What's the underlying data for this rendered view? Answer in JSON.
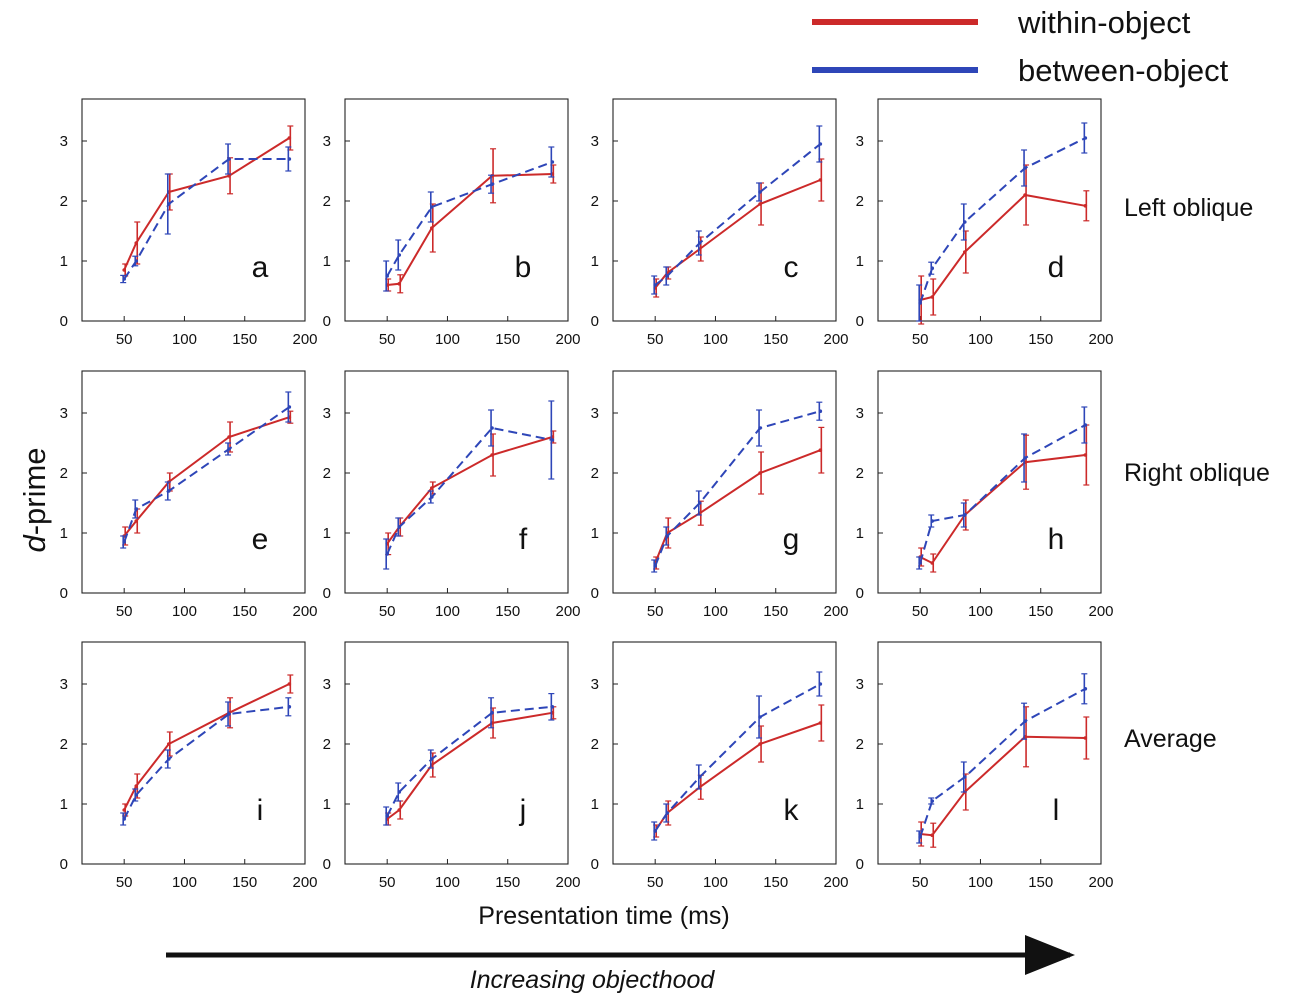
{
  "legend": {
    "within": {
      "label": "within-object",
      "color": "#cc2a2a"
    },
    "between": {
      "label": "between-object",
      "color": "#2e46b8"
    }
  },
  "xlabel": "Presentation time (ms)",
  "ylabel": {
    "italic": "d",
    "rest": "-prime"
  },
  "arrow_caption": "Increasing objecthood",
  "row_labels": [
    "Left oblique",
    "Right oblique",
    "Average"
  ],
  "x_ticks": [
    50,
    100,
    150,
    200
  ],
  "y_ticks": [
    0,
    1,
    2,
    3
  ],
  "chart_data": [
    {
      "panel": "a",
      "type": "line",
      "x": [
        50,
        60,
        87,
        137,
        187
      ],
      "xlim": [
        15,
        200
      ],
      "ylim": [
        0,
        3.7
      ],
      "series": [
        {
          "name": "within-object",
          "values": [
            0.85,
            1.3,
            2.15,
            2.42,
            3.05
          ],
          "errors": [
            0.1,
            0.35,
            0.3,
            0.3,
            0.2
          ]
        },
        {
          "name": "between-object",
          "values": [
            0.7,
            1.0,
            1.95,
            2.7,
            2.7
          ],
          "errors": [
            0.06,
            0.08,
            0.5,
            0.25,
            0.2
          ]
        }
      ]
    },
    {
      "panel": "b",
      "type": "line",
      "x": [
        50,
        60,
        87,
        137,
        187
      ],
      "xlim": [
        15,
        200
      ],
      "ylim": [
        0,
        3.7
      ],
      "series": [
        {
          "name": "within-object",
          "values": [
            0.6,
            0.62,
            1.55,
            2.42,
            2.45
          ],
          "errors": [
            0.1,
            0.15,
            0.4,
            0.45,
            0.15
          ]
        },
        {
          "name": "between-object",
          "values": [
            0.75,
            1.1,
            1.9,
            2.28,
            2.65
          ],
          "errors": [
            0.25,
            0.25,
            0.25,
            0.15,
            0.25
          ]
        }
      ]
    },
    {
      "panel": "c",
      "type": "line",
      "x": [
        50,
        60,
        87,
        137,
        187
      ],
      "xlim": [
        15,
        200
      ],
      "ylim": [
        0,
        3.7
      ],
      "series": [
        {
          "name": "within-object",
          "values": [
            0.55,
            0.8,
            1.2,
            1.95,
            2.35
          ],
          "errors": [
            0.15,
            0.1,
            0.2,
            0.35,
            0.35
          ]
        },
        {
          "name": "between-object",
          "values": [
            0.6,
            0.75,
            1.3,
            2.15,
            2.95
          ],
          "errors": [
            0.15,
            0.15,
            0.2,
            0.15,
            0.3
          ]
        }
      ]
    },
    {
      "panel": "d",
      "type": "line",
      "x": [
        50,
        60,
        87,
        137,
        187
      ],
      "xlim": [
        15,
        200
      ],
      "ylim": [
        0,
        3.7
      ],
      "series": [
        {
          "name": "within-object",
          "values": [
            0.35,
            0.4,
            1.15,
            2.1,
            1.92
          ],
          "errors": [
            0.4,
            0.3,
            0.35,
            0.5,
            0.25
          ]
        },
        {
          "name": "between-object",
          "values": [
            0.3,
            0.88,
            1.65,
            2.55,
            3.05
          ],
          "errors": [
            0.3,
            0.1,
            0.3,
            0.3,
            0.25
          ]
        }
      ]
    },
    {
      "panel": "e",
      "type": "line",
      "x": [
        50,
        60,
        87,
        137,
        187
      ],
      "xlim": [
        15,
        200
      ],
      "ylim": [
        0,
        3.7
      ],
      "series": [
        {
          "name": "within-object",
          "values": [
            0.95,
            1.2,
            1.85,
            2.6,
            2.93
          ],
          "errors": [
            0.15,
            0.2,
            0.15,
            0.25,
            0.1
          ]
        },
        {
          "name": "between-object",
          "values": [
            0.85,
            1.4,
            1.7,
            2.4,
            3.1
          ],
          "errors": [
            0.1,
            0.15,
            0.15,
            0.1,
            0.25
          ]
        }
      ]
    },
    {
      "panel": "f",
      "type": "line",
      "x": [
        50,
        60,
        87,
        137,
        187
      ],
      "xlim": [
        15,
        200
      ],
      "ylim": [
        0,
        3.7
      ],
      "series": [
        {
          "name": "within-object",
          "values": [
            0.82,
            1.1,
            1.75,
            2.3,
            2.6
          ],
          "errors": [
            0.18,
            0.15,
            0.1,
            0.35,
            0.1
          ]
        },
        {
          "name": "between-object",
          "values": [
            0.65,
            1.1,
            1.6,
            2.75,
            2.55
          ],
          "errors": [
            0.25,
            0.15,
            0.1,
            0.3,
            0.65
          ]
        }
      ]
    },
    {
      "panel": "g",
      "type": "line",
      "x": [
        50,
        60,
        87,
        137,
        187
      ],
      "xlim": [
        15,
        200
      ],
      "ylim": [
        0,
        3.7
      ],
      "series": [
        {
          "name": "within-object",
          "values": [
            0.5,
            1.0,
            1.33,
            2.0,
            2.38
          ],
          "errors": [
            0.1,
            0.25,
            0.2,
            0.35,
            0.38
          ]
        },
        {
          "name": "between-object",
          "values": [
            0.45,
            0.95,
            1.5,
            2.75,
            3.03
          ],
          "errors": [
            0.1,
            0.15,
            0.2,
            0.3,
            0.15
          ]
        }
      ]
    },
    {
      "panel": "h",
      "type": "line",
      "x": [
        50,
        60,
        87,
        137,
        187
      ],
      "xlim": [
        15,
        200
      ],
      "ylim": [
        0,
        3.7
      ],
      "series": [
        {
          "name": "within-object",
          "values": [
            0.6,
            0.5,
            1.3,
            2.18,
            2.3
          ],
          "errors": [
            0.15,
            0.15,
            0.25,
            0.45,
            0.5
          ]
        },
        {
          "name": "between-object",
          "values": [
            0.5,
            1.2,
            1.3,
            2.25,
            2.8
          ],
          "errors": [
            0.1,
            0.1,
            0.2,
            0.4,
            0.3
          ]
        }
      ]
    },
    {
      "panel": "i",
      "type": "line",
      "x": [
        50,
        60,
        87,
        137,
        187
      ],
      "xlim": [
        15,
        200
      ],
      "ylim": [
        0,
        3.7
      ],
      "series": [
        {
          "name": "within-object",
          "values": [
            0.9,
            1.3,
            2.0,
            2.52,
            3.0
          ],
          "errors": [
            0.1,
            0.2,
            0.2,
            0.25,
            0.15
          ]
        },
        {
          "name": "between-object",
          "values": [
            0.75,
            1.15,
            1.75,
            2.5,
            2.62
          ],
          "errors": [
            0.1,
            0.1,
            0.15,
            0.2,
            0.15
          ]
        }
      ]
    },
    {
      "panel": "j",
      "type": "line",
      "x": [
        50,
        60,
        87,
        137,
        187
      ],
      "xlim": [
        15,
        200
      ],
      "ylim": [
        0,
        3.7
      ],
      "series": [
        {
          "name": "within-object",
          "values": [
            0.75,
            0.9,
            1.65,
            2.35,
            2.52
          ],
          "errors": [
            0.1,
            0.15,
            0.2,
            0.25,
            0.1
          ]
        },
        {
          "name": "between-object",
          "values": [
            0.8,
            1.2,
            1.75,
            2.52,
            2.62
          ],
          "errors": [
            0.15,
            0.15,
            0.15,
            0.25,
            0.22
          ]
        }
      ]
    },
    {
      "panel": "k",
      "type": "line",
      "x": [
        50,
        60,
        87,
        137,
        187
      ],
      "xlim": [
        15,
        200
      ],
      "ylim": [
        0,
        3.7
      ],
      "series": [
        {
          "name": "within-object",
          "values": [
            0.55,
            0.85,
            1.28,
            2.0,
            2.35
          ],
          "errors": [
            0.1,
            0.2,
            0.2,
            0.3,
            0.3
          ]
        },
        {
          "name": "between-object",
          "values": [
            0.55,
            0.85,
            1.45,
            2.45,
            3.0
          ],
          "errors": [
            0.15,
            0.15,
            0.2,
            0.35,
            0.2
          ]
        }
      ]
    },
    {
      "panel": "l",
      "type": "line",
      "x": [
        50,
        60,
        87,
        137,
        187
      ],
      "xlim": [
        15,
        200
      ],
      "ylim": [
        0,
        3.7
      ],
      "series": [
        {
          "name": "within-object",
          "values": [
            0.5,
            0.48,
            1.2,
            2.12,
            2.1
          ],
          "errors": [
            0.2,
            0.2,
            0.3,
            0.5,
            0.35
          ]
        },
        {
          "name": "between-object",
          "values": [
            0.45,
            1.05,
            1.45,
            2.38,
            2.92
          ],
          "errors": [
            0.1,
            0.05,
            0.25,
            0.3,
            0.25
          ]
        }
      ]
    }
  ]
}
